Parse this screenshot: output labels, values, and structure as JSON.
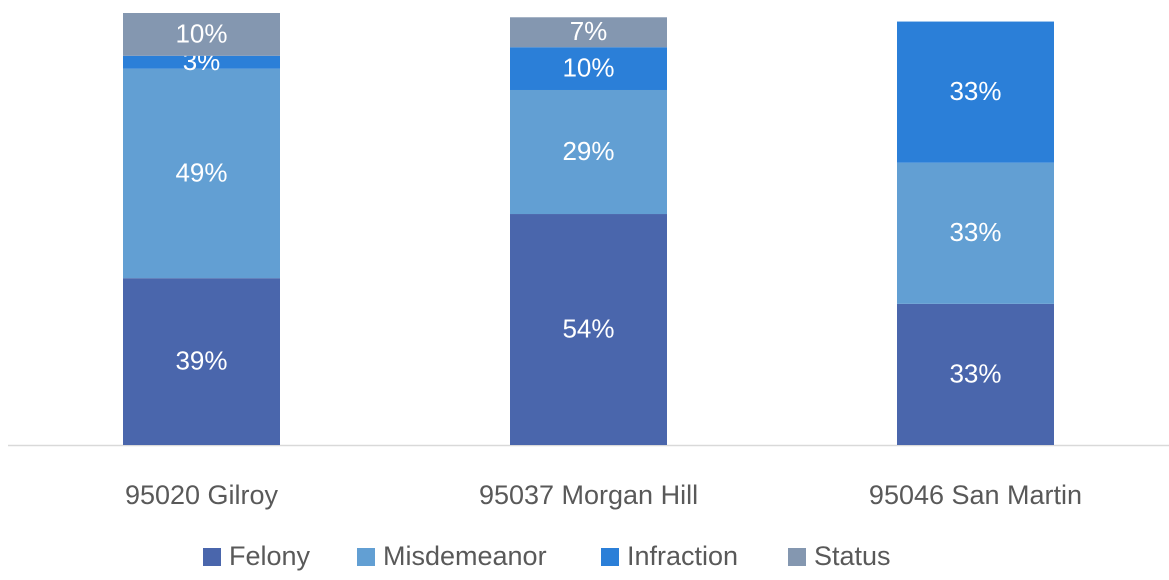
{
  "chart_data": {
    "type": "stacked_bar",
    "categories": [
      "95020 Gilroy",
      "95037 Morgan Hill",
      "95046 San Martin"
    ],
    "series": [
      {
        "name": "Felony",
        "color": "#4a66ac",
        "values": [
          39,
          54,
          33
        ],
        "value_labels": [
          "39%",
          "54%",
          "33%"
        ]
      },
      {
        "name": "Misdemeanor",
        "color": "#629fd3",
        "values": [
          49,
          29,
          33
        ],
        "value_labels": [
          "49%",
          "29%",
          "33%"
        ]
      },
      {
        "name": "Infraction",
        "color": "#2b7fd8",
        "values": [
          3,
          10,
          33
        ],
        "value_labels": [
          "3%",
          "10%",
          "33%"
        ]
      },
      {
        "name": "Status",
        "color": "#8497b0",
        "values": [
          10,
          7,
          null
        ],
        "value_labels": [
          "10%",
          "7%",
          null
        ]
      }
    ],
    "ylim": [
      0,
      101
    ],
    "legend": "bottom"
  }
}
